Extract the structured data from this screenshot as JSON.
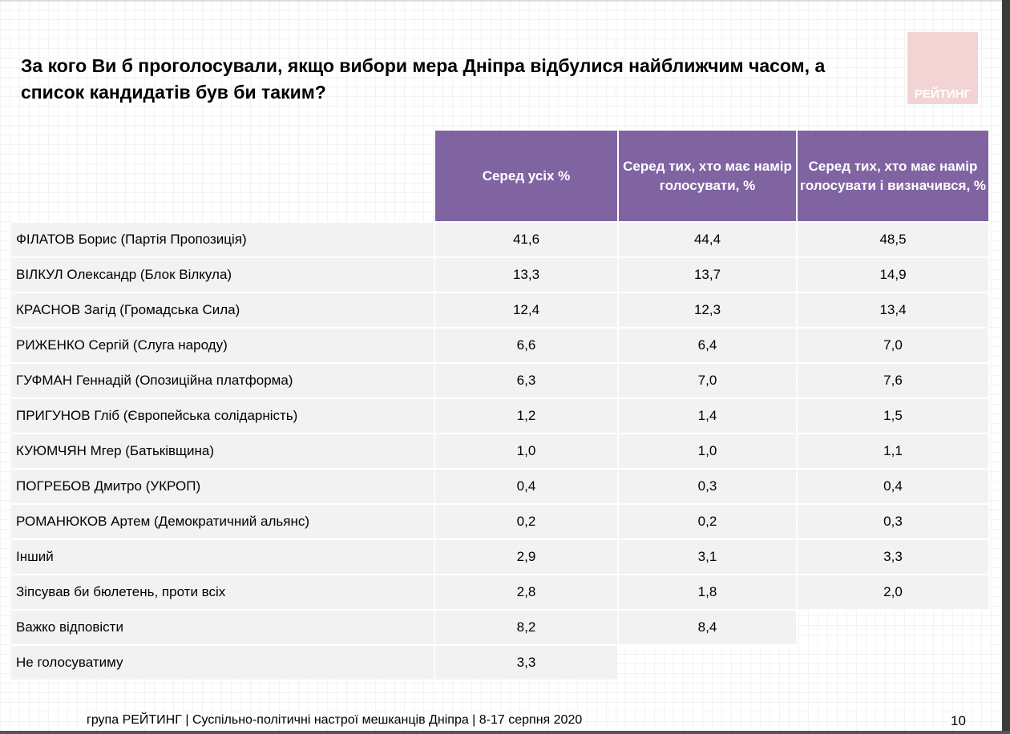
{
  "title": "За кого Ви б проголосували, якщо вибори мера Дніпра відбулися найближчим часом, а список кандидатів був би таким?",
  "logo": "РЕЙТИНГ",
  "table": {
    "headers": [
      "Серед усіх %",
      "Серед тих, хто має намір голосувати, %",
      "Серед тих, хто має намір голосувати і визначився, %"
    ],
    "rows": [
      {
        "label": "ФІЛАТОВ Борис (Партія Пропозиція)",
        "values": [
          "41,6",
          "44,4",
          "48,5"
        ]
      },
      {
        "label": "ВІЛКУЛ Олександр (Блок Вілкула)",
        "values": [
          "13,3",
          "13,7",
          "14,9"
        ]
      },
      {
        "label": "КРАСНОВ Загід (Громадська Сила)",
        "values": [
          "12,4",
          "12,3",
          "13,4"
        ]
      },
      {
        "label": "РИЖЕНКО Сергій (Слуга народу)",
        "values": [
          "6,6",
          "6,4",
          "7,0"
        ]
      },
      {
        "label": "ГУФМАН Геннадій (Опозиційна платформа)",
        "values": [
          "6,3",
          "7,0",
          "7,6"
        ]
      },
      {
        "label": "ПРИГУНОВ Гліб (Європейська солідарність)",
        "values": [
          "1,2",
          "1,4",
          "1,5"
        ]
      },
      {
        "label": "КУЮМЧЯН Мгер (Батьківщина)",
        "values": [
          "1,0",
          "1,0",
          "1,1"
        ]
      },
      {
        "label": "ПОГРЕБОВ Дмитро (УКРОП)",
        "values": [
          "0,4",
          "0,3",
          "0,4"
        ]
      },
      {
        "label": "РОМАНЮКОВ Артем (Демократичний альянс)",
        "values": [
          "0,2",
          "0,2",
          "0,3"
        ]
      },
      {
        "label": "Інший",
        "values": [
          "2,9",
          "3,1",
          "3,3"
        ]
      },
      {
        "label": "Зіпсував би бюлетень, проти всіх",
        "values": [
          "2,8",
          "1,8",
          "2,0"
        ]
      },
      {
        "label": "Важко відповісти",
        "values": [
          "8,2",
          "8,4",
          null
        ]
      },
      {
        "label": "Не голосуватиму",
        "values": [
          "3,3",
          null,
          null
        ]
      }
    ]
  },
  "footer": "група РЕЙТИНГ  | Суспільно-політичні настрої мешканців Дніпра | 8-17 серпня 2020",
  "page_number": "10",
  "colors": {
    "header": "#8064a2",
    "row": "#f2f2f2",
    "logo": "#f2d4d4"
  }
}
